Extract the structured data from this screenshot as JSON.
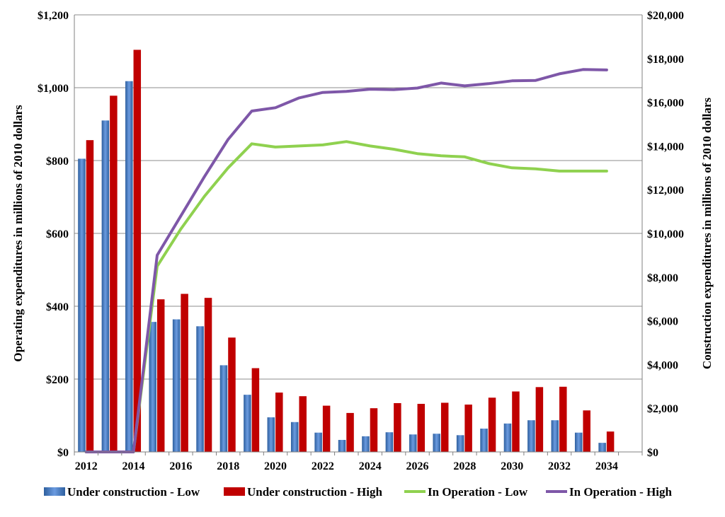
{
  "chart_data": {
    "type": "bar+line",
    "title": "",
    "categories": [
      "2012",
      "2013",
      "2014",
      "2015",
      "2016",
      "2017",
      "2018",
      "2019",
      "2020",
      "2021",
      "2022",
      "2023",
      "2024",
      "2025",
      "2026",
      "2027",
      "2028",
      "2029",
      "2030",
      "2031",
      "2032",
      "2033",
      "2034",
      "2035"
    ],
    "x_tick_labels": [
      "2012",
      "2014",
      "2016",
      "2018",
      "2020",
      "2022",
      "2024",
      "2026",
      "2028",
      "2030",
      "2032",
      "2034"
    ],
    "y_left": {
      "label": "Operating expenditures in millions of 2010 dollars",
      "min": 0,
      "max": 1200,
      "step": 200,
      "tick_labels": [
        "$0",
        "$200",
        "$400",
        "$600",
        "$800",
        "$1,000",
        "$1,200"
      ]
    },
    "y_right": {
      "label": "Construction expenditures in millions of 2010 dollars",
      "min": 0,
      "max": 20000,
      "step": 2000,
      "tick_labels": [
        "$0",
        "$2,000",
        "$4,000",
        "$6,000",
        "$8,000",
        "$10,000",
        "$12,000",
        "$14,000",
        "$16,000",
        "$18,000",
        "$20,000"
      ]
    },
    "gridlines": true,
    "legend_position": "bottom",
    "series": [
      {
        "name": "Under construction - Low",
        "type": "bar",
        "axis": "left",
        "color": "#4a7fc9",
        "values": [
          805,
          910,
          1018,
          357,
          364,
          345,
          238,
          157,
          95,
          82,
          53,
          33,
          43,
          54,
          48,
          50,
          46,
          64,
          78,
          87,
          87,
          53,
          25,
          null
        ]
      },
      {
        "name": "Under construction - High",
        "type": "bar",
        "axis": "left",
        "color": "#c00000",
        "values": [
          856,
          978,
          1104,
          419,
          434,
          423,
          314,
          230,
          163,
          153,
          127,
          107,
          120,
          134,
          132,
          135,
          130,
          149,
          166,
          178,
          179,
          114,
          56,
          null
        ]
      },
      {
        "name": "In Operation - Low",
        "type": "line",
        "axis": "right",
        "color": "#8fd14f",
        "values": [
          0,
          0,
          0,
          8500,
          10200,
          11700,
          13000,
          14100,
          13950,
          14000,
          14050,
          14200,
          14000,
          13850,
          13650,
          13550,
          13500,
          13200,
          13000,
          12950,
          12850,
          12850,
          12850,
          null
        ]
      },
      {
        "name": "In Operation - High",
        "type": "line",
        "axis": "right",
        "color": "#7e57a8",
        "values": [
          0,
          0,
          0,
          9000,
          10800,
          12600,
          14300,
          15600,
          15750,
          16200,
          16450,
          16500,
          16600,
          16580,
          16650,
          16880,
          16750,
          16850,
          16980,
          17000,
          17300,
          17500,
          17480,
          null
        ]
      }
    ]
  }
}
